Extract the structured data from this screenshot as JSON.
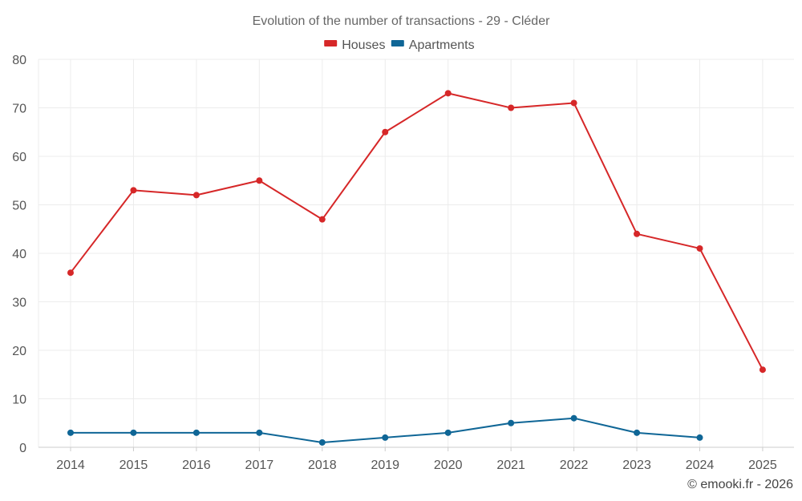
{
  "chart_data": {
    "type": "line",
    "title": "Evolution of the number of transactions - 29 - Cléder",
    "xlabel": "",
    "ylabel": "",
    "categories": [
      "2014",
      "2015",
      "2016",
      "2017",
      "2018",
      "2019",
      "2020",
      "2021",
      "2022",
      "2023",
      "2024",
      "2025"
    ],
    "ylim": [
      0,
      80
    ],
    "yticks": [
      0,
      10,
      20,
      30,
      40,
      50,
      60,
      70,
      80
    ],
    "grid": true,
    "legend_position": "top-center",
    "series": [
      {
        "name": "Houses",
        "color": "#d62728",
        "values": [
          36,
          53,
          52,
          55,
          47,
          65,
          73,
          70,
          71,
          44,
          41,
          16
        ]
      },
      {
        "name": "Apartments",
        "color": "#0f6696",
        "values": [
          3,
          3,
          3,
          3,
          1,
          2,
          3,
          5,
          6,
          3,
          2,
          null
        ]
      }
    ]
  },
  "footer": {
    "credit": "© emooki.fr - 2026"
  }
}
